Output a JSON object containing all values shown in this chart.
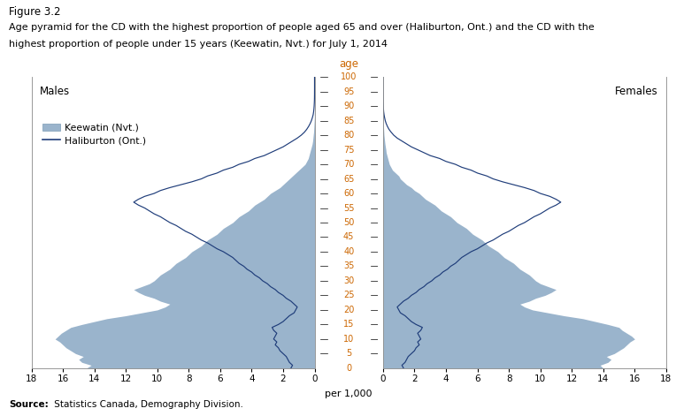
{
  "title_line1": "Figure 3.2",
  "title_line2": "Age pyramid for the CD with the highest proportion of people aged 65 and over (Haliburton, Ont.) and the CD with the",
  "title_line3": "highest proportion of people under 15 years (Keewatin, Nvt.) for July 1, 2014",
  "age_label": "age",
  "xlabel": "per 1,000",
  "males_label": "Males",
  "females_label": "Females",
  "legend_keewatin": "Keewatin (Nvt.)",
  "legend_haliburton": "Haliburton (Ont.)",
  "source_bold": "Source:",
  "source_rest": " Statistics Canada, Demography Division.",
  "keewatin_color": "#9ab4cc",
  "haliburton_color": "#1f3d7a",
  "ages": [
    0,
    1,
    2,
    3,
    4,
    5,
    6,
    7,
    8,
    9,
    10,
    11,
    12,
    13,
    14,
    15,
    16,
    17,
    18,
    19,
    20,
    21,
    22,
    23,
    24,
    25,
    26,
    27,
    28,
    29,
    30,
    31,
    32,
    33,
    34,
    35,
    36,
    37,
    38,
    39,
    40,
    41,
    42,
    43,
    44,
    45,
    46,
    47,
    48,
    49,
    50,
    51,
    52,
    53,
    54,
    55,
    56,
    57,
    58,
    59,
    60,
    61,
    62,
    63,
    64,
    65,
    66,
    67,
    68,
    69,
    70,
    71,
    72,
    73,
    74,
    75,
    76,
    77,
    78,
    79,
    80,
    81,
    82,
    83,
    84,
    85,
    86,
    87,
    88,
    89,
    90,
    91,
    92,
    93,
    94,
    95,
    96,
    97,
    98,
    99,
    100
  ],
  "keewatin_males": [
    14.5,
    14.2,
    14.8,
    15.0,
    14.7,
    15.2,
    15.5,
    15.8,
    16.0,
    16.2,
    16.5,
    16.3,
    16.1,
    15.8,
    15.5,
    14.8,
    14.0,
    13.2,
    12.0,
    11.0,
    10.0,
    9.5,
    9.2,
    9.8,
    10.2,
    10.8,
    11.2,
    11.5,
    11.0,
    10.5,
    10.2,
    10.0,
    9.8,
    9.5,
    9.2,
    9.0,
    8.8,
    8.5,
    8.2,
    8.0,
    7.8,
    7.5,
    7.2,
    7.0,
    6.8,
    6.5,
    6.2,
    6.0,
    5.8,
    5.5,
    5.2,
    5.0,
    4.8,
    4.5,
    4.2,
    4.0,
    3.8,
    3.5,
    3.2,
    3.0,
    2.8,
    2.5,
    2.2,
    2.0,
    1.8,
    1.6,
    1.4,
    1.2,
    1.0,
    0.8,
    0.6,
    0.5,
    0.4,
    0.35,
    0.3,
    0.25,
    0.2,
    0.15,
    0.12,
    0.1,
    0.08,
    0.06,
    0.05,
    0.04,
    0.03,
    0.02,
    0.01,
    0.01,
    0.005,
    0.003,
    0.002,
    0.001,
    0.001,
    0.0,
    0.0,
    0.0,
    0.0,
    0.0,
    0.0,
    0.0,
    0.0
  ],
  "keewatin_females": [
    14.0,
    13.8,
    14.3,
    14.5,
    14.2,
    14.7,
    15.0,
    15.3,
    15.5,
    15.7,
    16.0,
    15.8,
    15.5,
    15.2,
    15.0,
    14.3,
    13.5,
    12.7,
    11.5,
    10.5,
    9.5,
    9.0,
    8.7,
    9.3,
    9.7,
    10.3,
    10.7,
    11.0,
    10.5,
    10.0,
    9.7,
    9.5,
    9.3,
    9.0,
    8.7,
    8.5,
    8.3,
    8.0,
    7.7,
    7.5,
    7.3,
    7.0,
    6.7,
    6.5,
    6.3,
    6.0,
    5.7,
    5.5,
    5.3,
    5.0,
    4.7,
    4.5,
    4.3,
    4.0,
    3.7,
    3.5,
    3.3,
    3.0,
    2.7,
    2.5,
    2.3,
    2.0,
    1.8,
    1.5,
    1.3,
    1.1,
    1.0,
    0.8,
    0.6,
    0.5,
    0.4,
    0.35,
    0.3,
    0.25,
    0.2,
    0.18,
    0.15,
    0.12,
    0.1,
    0.08,
    0.06,
    0.05,
    0.04,
    0.03,
    0.02,
    0.015,
    0.01,
    0.008,
    0.005,
    0.003,
    0.002,
    0.001,
    0.001,
    0.0,
    0.0,
    0.0,
    0.0,
    0.0,
    0.0,
    0.0,
    0.0
  ],
  "haliburton_males": [
    1.5,
    1.4,
    1.6,
    1.7,
    1.8,
    2.0,
    2.2,
    2.3,
    2.5,
    2.4,
    2.6,
    2.5,
    2.4,
    2.6,
    2.7,
    2.3,
    2.0,
    1.8,
    1.6,
    1.3,
    1.2,
    1.1,
    1.3,
    1.5,
    1.8,
    2.0,
    2.3,
    2.5,
    2.8,
    3.0,
    3.3,
    3.5,
    3.8,
    4.0,
    4.3,
    4.5,
    4.8,
    5.0,
    5.2,
    5.5,
    5.8,
    6.2,
    6.5,
    6.8,
    7.2,
    7.5,
    7.8,
    8.2,
    8.5,
    8.8,
    9.2,
    9.5,
    9.8,
    10.2,
    10.5,
    10.8,
    11.2,
    11.5,
    11.2,
    10.8,
    10.2,
    9.8,
    9.2,
    8.5,
    7.8,
    7.2,
    6.8,
    6.2,
    5.8,
    5.2,
    4.8,
    4.2,
    3.8,
    3.2,
    2.8,
    2.4,
    2.0,
    1.7,
    1.4,
    1.1,
    0.85,
    0.65,
    0.5,
    0.38,
    0.28,
    0.2,
    0.14,
    0.09,
    0.06,
    0.04,
    0.025,
    0.015,
    0.008,
    0.004,
    0.002,
    0.001,
    0.0,
    0.0,
    0.0,
    0.0,
    0.0
  ],
  "haliburton_females": [
    1.3,
    1.2,
    1.4,
    1.5,
    1.6,
    1.8,
    2.0,
    2.1,
    2.3,
    2.2,
    2.4,
    2.3,
    2.2,
    2.4,
    2.5,
    2.1,
    1.8,
    1.6,
    1.4,
    1.1,
    1.0,
    0.9,
    1.1,
    1.3,
    1.6,
    1.8,
    2.1,
    2.3,
    2.6,
    2.8,
    3.1,
    3.3,
    3.6,
    3.8,
    4.1,
    4.3,
    4.6,
    4.8,
    5.0,
    5.3,
    5.6,
    6.0,
    6.3,
    6.6,
    7.0,
    7.3,
    7.6,
    8.0,
    8.3,
    8.6,
    9.0,
    9.3,
    9.6,
    10.0,
    10.3,
    10.6,
    11.0,
    11.3,
    11.0,
    10.6,
    10.0,
    9.6,
    9.0,
    8.3,
    7.6,
    7.0,
    6.6,
    6.0,
    5.6,
    5.0,
    4.6,
    4.0,
    3.6,
    3.0,
    2.6,
    2.2,
    1.8,
    1.5,
    1.2,
    0.9,
    0.68,
    0.52,
    0.38,
    0.28,
    0.2,
    0.14,
    0.1,
    0.065,
    0.04,
    0.025,
    0.015,
    0.008,
    0.004,
    0.002,
    0.001,
    0.0,
    0.0,
    0.0,
    0.0,
    0.0,
    0.0
  ],
  "xlim": 18,
  "ylim_max": 100,
  "yticks": [
    0,
    5,
    10,
    15,
    20,
    25,
    30,
    35,
    40,
    45,
    50,
    55,
    60,
    65,
    70,
    75,
    80,
    85,
    90,
    95,
    100
  ],
  "xticks": [
    0,
    2,
    4,
    6,
    8,
    10,
    12,
    14,
    16,
    18
  ],
  "background_color": "#ffffff",
  "label_color": "#cc6600",
  "border_color": "#888888"
}
